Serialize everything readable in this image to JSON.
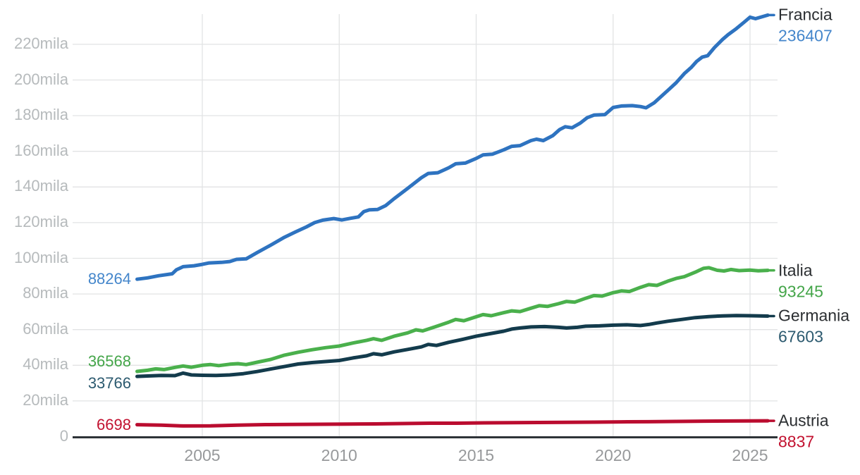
{
  "chart_data": {
    "type": "line",
    "title": "",
    "xlabel": "",
    "ylabel": "",
    "x_axis": {
      "ticks": [
        2005,
        2010,
        2015,
        2020,
        2025
      ]
    },
    "y_axis": {
      "tick_labels": [
        "0",
        "20mila",
        "40mila",
        "60mila",
        "80mila",
        "100mila",
        "120mila",
        "140mila",
        "160mila",
        "180mila",
        "200mila",
        "220mila"
      ],
      "tick_values": [
        0,
        20000,
        40000,
        60000,
        80000,
        100000,
        120000,
        140000,
        160000,
        180000,
        200000,
        220000
      ],
      "ylim": [
        0,
        240000
      ],
      "grid": true
    },
    "xlim": [
      2002.6,
      2025.7
    ],
    "legend_position": "right-edge-labels",
    "series": [
      {
        "name": "Francia",
        "start_label": "88264",
        "end_label": "236407",
        "start_value": 88264,
        "end_value": 236407,
        "line_color": "#2e73c0",
        "text_color": "#4486cb",
        "start_label_dy": 0,
        "points": [
          [
            2002.62,
            88264
          ],
          [
            2003.0,
            89000
          ],
          [
            2003.4,
            90200
          ],
          [
            2003.9,
            91300
          ],
          [
            2004.05,
            93500
          ],
          [
            2004.3,
            95300
          ],
          [
            2004.7,
            95800
          ],
          [
            2005.0,
            96600
          ],
          [
            2005.25,
            97400
          ],
          [
            2005.7,
            97700
          ],
          [
            2006.0,
            98200
          ],
          [
            2006.25,
            99400
          ],
          [
            2006.6,
            99700
          ],
          [
            2007.0,
            103200
          ],
          [
            2007.5,
            107400
          ],
          [
            2008.0,
            111800
          ],
          [
            2008.4,
            114800
          ],
          [
            2008.8,
            117600
          ],
          [
            2009.1,
            120000
          ],
          [
            2009.4,
            121400
          ],
          [
            2009.8,
            122300
          ],
          [
            2010.1,
            121500
          ],
          [
            2010.4,
            122400
          ],
          [
            2010.7,
            123200
          ],
          [
            2010.9,
            126200
          ],
          [
            2011.1,
            127200
          ],
          [
            2011.4,
            127400
          ],
          [
            2011.7,
            129600
          ],
          [
            2012.0,
            133400
          ],
          [
            2012.5,
            139200
          ],
          [
            2013.0,
            145200
          ],
          [
            2013.25,
            147600
          ],
          [
            2013.6,
            148000
          ],
          [
            2014.0,
            150800
          ],
          [
            2014.25,
            153000
          ],
          [
            2014.6,
            153400
          ],
          [
            2015.0,
            156000
          ],
          [
            2015.25,
            158000
          ],
          [
            2015.6,
            158400
          ],
          [
            2016.0,
            160800
          ],
          [
            2016.3,
            162800
          ],
          [
            2016.6,
            163200
          ],
          [
            2017.0,
            166000
          ],
          [
            2017.2,
            166800
          ],
          [
            2017.45,
            166000
          ],
          [
            2017.8,
            168800
          ],
          [
            2018.05,
            172200
          ],
          [
            2018.25,
            173800
          ],
          [
            2018.5,
            173200
          ],
          [
            2018.8,
            175800
          ],
          [
            2019.05,
            178800
          ],
          [
            2019.3,
            180300
          ],
          [
            2019.7,
            180600
          ],
          [
            2020.0,
            184600
          ],
          [
            2020.3,
            185400
          ],
          [
            2020.7,
            185600
          ],
          [
            2021.0,
            185100
          ],
          [
            2021.2,
            184400
          ],
          [
            2021.5,
            187200
          ],
          [
            2022.0,
            194200
          ],
          [
            2022.3,
            198400
          ],
          [
            2022.6,
            203600
          ],
          [
            2022.85,
            207000
          ],
          [
            2023.05,
            210400
          ],
          [
            2023.25,
            212800
          ],
          [
            2023.45,
            213600
          ],
          [
            2023.7,
            218200
          ],
          [
            2024.0,
            222800
          ],
          [
            2024.2,
            225400
          ],
          [
            2024.5,
            228800
          ],
          [
            2024.8,
            232600
          ],
          [
            2025.0,
            235200
          ],
          [
            2025.2,
            234400
          ],
          [
            2025.65,
            236407
          ]
        ]
      },
      {
        "name": "Italia",
        "start_label": "36568",
        "end_label": "93245",
        "start_value": 36568,
        "end_value": 93245,
        "line_color": "#4ab04c",
        "text_color": "#44a549",
        "start_label_dy": -14,
        "points": [
          [
            2002.62,
            36568
          ],
          [
            2003.0,
            37200
          ],
          [
            2003.3,
            38000
          ],
          [
            2003.6,
            37600
          ],
          [
            2004.0,
            38800
          ],
          [
            2004.3,
            39600
          ],
          [
            2004.6,
            38900
          ],
          [
            2005.0,
            40000
          ],
          [
            2005.3,
            40400
          ],
          [
            2005.6,
            39800
          ],
          [
            2006.0,
            40600
          ],
          [
            2006.3,
            40900
          ],
          [
            2006.6,
            40400
          ],
          [
            2007.0,
            41700
          ],
          [
            2007.5,
            43300
          ],
          [
            2008.0,
            45700
          ],
          [
            2008.5,
            47300
          ],
          [
            2009.0,
            48700
          ],
          [
            2009.5,
            49900
          ],
          [
            2010.0,
            50800
          ],
          [
            2010.5,
            52500
          ],
          [
            2011.0,
            54000
          ],
          [
            2011.25,
            54900
          ],
          [
            2011.55,
            54000
          ],
          [
            2012.0,
            56300
          ],
          [
            2012.5,
            58200
          ],
          [
            2012.8,
            59900
          ],
          [
            2013.05,
            59300
          ],
          [
            2013.5,
            61600
          ],
          [
            2014.0,
            64200
          ],
          [
            2014.25,
            65700
          ],
          [
            2014.55,
            65000
          ],
          [
            2015.0,
            67200
          ],
          [
            2015.25,
            68400
          ],
          [
            2015.55,
            67800
          ],
          [
            2016.0,
            69500
          ],
          [
            2016.3,
            70500
          ],
          [
            2016.6,
            70100
          ],
          [
            2017.0,
            72000
          ],
          [
            2017.3,
            73400
          ],
          [
            2017.6,
            73000
          ],
          [
            2018.0,
            74500
          ],
          [
            2018.3,
            75800
          ],
          [
            2018.6,
            75400
          ],
          [
            2019.0,
            77600
          ],
          [
            2019.3,
            79100
          ],
          [
            2019.6,
            78800
          ],
          [
            2020.0,
            80700
          ],
          [
            2020.3,
            81700
          ],
          [
            2020.6,
            81400
          ],
          [
            2021.0,
            83700
          ],
          [
            2021.3,
            85200
          ],
          [
            2021.6,
            84800
          ],
          [
            2022.0,
            87200
          ],
          [
            2022.3,
            88700
          ],
          [
            2022.6,
            89700
          ],
          [
            2023.0,
            92200
          ],
          [
            2023.3,
            94400
          ],
          [
            2023.5,
            94700
          ],
          [
            2023.8,
            93300
          ],
          [
            2024.05,
            92900
          ],
          [
            2024.3,
            93700
          ],
          [
            2024.6,
            93100
          ],
          [
            2025.0,
            93400
          ],
          [
            2025.3,
            93000
          ],
          [
            2025.65,
            93245
          ]
        ]
      },
      {
        "name": "Germania",
        "start_label": "33766",
        "end_label": "67603",
        "start_value": 33766,
        "end_value": 67603,
        "line_color": "#133b4c",
        "text_color": "#2c5a6f",
        "start_label_dy": 10,
        "points": [
          [
            2002.62,
            33766
          ],
          [
            2003.0,
            34000
          ],
          [
            2003.5,
            34300
          ],
          [
            2004.0,
            34200
          ],
          [
            2004.3,
            35600
          ],
          [
            2004.6,
            34600
          ],
          [
            2005.0,
            34400
          ],
          [
            2005.5,
            34300
          ],
          [
            2006.0,
            34600
          ],
          [
            2006.5,
            35300
          ],
          [
            2007.0,
            36500
          ],
          [
            2007.5,
            37900
          ],
          [
            2008.0,
            39300
          ],
          [
            2008.5,
            40700
          ],
          [
            2009.0,
            41500
          ],
          [
            2009.5,
            42100
          ],
          [
            2010.0,
            42700
          ],
          [
            2010.5,
            44100
          ],
          [
            2011.0,
            45300
          ],
          [
            2011.25,
            46500
          ],
          [
            2011.55,
            45900
          ],
          [
            2012.0,
            47500
          ],
          [
            2012.5,
            48900
          ],
          [
            2013.0,
            50300
          ],
          [
            2013.25,
            51700
          ],
          [
            2013.55,
            51100
          ],
          [
            2014.0,
            52900
          ],
          [
            2014.5,
            54500
          ],
          [
            2015.0,
            56300
          ],
          [
            2015.5,
            57700
          ],
          [
            2016.0,
            59100
          ],
          [
            2016.3,
            60300
          ],
          [
            2016.6,
            60900
          ],
          [
            2017.0,
            61500
          ],
          [
            2017.5,
            61700
          ],
          [
            2018.0,
            61300
          ],
          [
            2018.3,
            60900
          ],
          [
            2018.7,
            61300
          ],
          [
            2019.0,
            61900
          ],
          [
            2019.5,
            62100
          ],
          [
            2020.0,
            62500
          ],
          [
            2020.5,
            62700
          ],
          [
            2021.0,
            62300
          ],
          [
            2021.3,
            62900
          ],
          [
            2021.6,
            63700
          ],
          [
            2022.0,
            64700
          ],
          [
            2022.5,
            65700
          ],
          [
            2023.0,
            66700
          ],
          [
            2023.5,
            67300
          ],
          [
            2024.0,
            67700
          ],
          [
            2024.5,
            67900
          ],
          [
            2025.0,
            67800
          ],
          [
            2025.65,
            67603
          ]
        ]
      },
      {
        "name": "Austria",
        "start_label": "6698",
        "end_label": "8837",
        "start_value": 6698,
        "end_value": 8837,
        "line_color": "#ba0c2f",
        "text_color": "#c2112f",
        "start_label_dy": 0,
        "points": [
          [
            2002.62,
            6698
          ],
          [
            2003.5,
            6400
          ],
          [
            2004.3,
            5950
          ],
          [
            2005.3,
            6000
          ],
          [
            2006.3,
            6400
          ],
          [
            2007.3,
            6700
          ],
          [
            2008.3,
            6800
          ],
          [
            2009.3,
            6900
          ],
          [
            2010.3,
            7000
          ],
          [
            2011.3,
            7100
          ],
          [
            2012.3,
            7300
          ],
          [
            2013.3,
            7500
          ],
          [
            2014.3,
            7500
          ],
          [
            2015.3,
            7700
          ],
          [
            2016.3,
            7800
          ],
          [
            2017.3,
            7900
          ],
          [
            2018.3,
            8000
          ],
          [
            2019.3,
            8100
          ],
          [
            2020.3,
            8250
          ],
          [
            2021.3,
            8350
          ],
          [
            2022.3,
            8500
          ],
          [
            2023.3,
            8650
          ],
          [
            2024.3,
            8750
          ],
          [
            2025.65,
            8837
          ]
        ]
      }
    ],
    "style": {
      "background": "#ffffff",
      "grid_color": "#e2e3e4",
      "axis_color": "#2e3338",
      "y_tick_color": "#b6babc",
      "x_tick_color": "#97999b",
      "line_width": 5
    }
  }
}
